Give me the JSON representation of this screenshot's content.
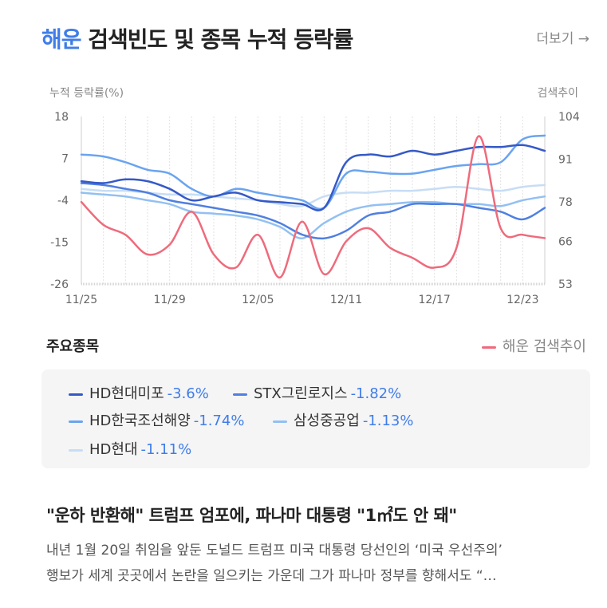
{
  "header": {
    "title_keyword": "해운",
    "title_rest": "검색빈도 및 종목 누적 등락률",
    "more_label": "더보기 →"
  },
  "chart_data": {
    "type": "line",
    "y_left_label": "누적 등락률(%)",
    "y_right_label": "검색추이",
    "y_left_ticks": [
      18,
      7,
      -4,
      -15,
      -26
    ],
    "y_right_ticks": [
      104,
      91,
      78,
      66,
      53
    ],
    "ylim_left": [
      -26,
      18
    ],
    "ylim_right": [
      53,
      104
    ],
    "x_ticks": [
      "11/25",
      "11/29",
      "12/05",
      "12/11",
      "12/17",
      "12/23"
    ],
    "x_tick_index": [
      0,
      4,
      8,
      12,
      16,
      20
    ],
    "x_count": 22,
    "grid": "vertical-dotted",
    "series": [
      {
        "name": "HD현대미포",
        "change": "-3.6%",
        "color": "#3559c7",
        "axis": "left",
        "values": [
          1,
          0.5,
          1.5,
          1,
          -1,
          -4,
          -3,
          -2,
          -4,
          -4.5,
          -5,
          -6,
          6,
          8,
          7.5,
          9,
          8,
          9,
          10,
          10,
          10.5,
          9
        ]
      },
      {
        "name": "STX그린로지스",
        "change": "-1.82%",
        "color": "#4f7fe0",
        "axis": "left",
        "values": [
          0.5,
          0,
          -1,
          -2,
          -4,
          -5,
          -6,
          -7,
          -8,
          -10,
          -13,
          -14,
          -12,
          -8,
          -7,
          -5,
          -5,
          -5,
          -6,
          -7,
          -9,
          -6
        ]
      },
      {
        "name": "HD한국조선해양",
        "change": "-1.74%",
        "color": "#6aa4f0",
        "axis": "left",
        "values": [
          8,
          7.5,
          6,
          4,
          3,
          -1,
          -3,
          -1,
          -2,
          -3,
          -4,
          -6,
          3,
          3.5,
          3,
          3,
          4,
          5,
          5.5,
          6,
          12,
          13
        ]
      },
      {
        "name": "삼성중공업",
        "change": "-1.13%",
        "color": "#92c0f2",
        "axis": "left",
        "values": [
          -2,
          -2.5,
          -3,
          -4,
          -5,
          -7,
          -7.5,
          -8,
          -9,
          -11,
          -14,
          -10,
          -7,
          -5.5,
          -5,
          -4.5,
          -4.5,
          -5,
          -5,
          -5.5,
          -4,
          -3
        ]
      },
      {
        "name": "HD현대",
        "change": "-1.11%",
        "color": "#c7ddf5",
        "axis": "left",
        "values": [
          -1,
          -1.5,
          -1.5,
          -2,
          -2.5,
          -2.5,
          -3,
          -3.5,
          -4,
          -5,
          -5.5,
          -3,
          -2,
          -2,
          -1.5,
          -1.5,
          -1,
          -0.5,
          -1,
          -1.5,
          -0.5,
          0
        ]
      }
    ],
    "search_series": {
      "name": "해운 검색추이",
      "color": "#ee6b7c",
      "axis": "right",
      "values": [
        78,
        71,
        68,
        62,
        65,
        75,
        62,
        58,
        68,
        55,
        72,
        56,
        66,
        70,
        64,
        61,
        58,
        64,
        98,
        70,
        68,
        67
      ]
    }
  },
  "stocks_section": {
    "title": "주요종목",
    "search_legend": "해운 검색추이"
  },
  "news": {
    "title": "\"운하 반환해\" 트럼프 엄포에, 파나마 대통령 \"1㎡도 안 돼\"",
    "line1": "내년 1월 20일 취임을 앞둔 도널드 트럼프 미국 대통령 당선인의 ‘미국 우선주의’",
    "line2": "행보가 세계 곳곳에서 논란을 일으키는 가운데 그가 파나마 정부를 향해서도 “…"
  }
}
